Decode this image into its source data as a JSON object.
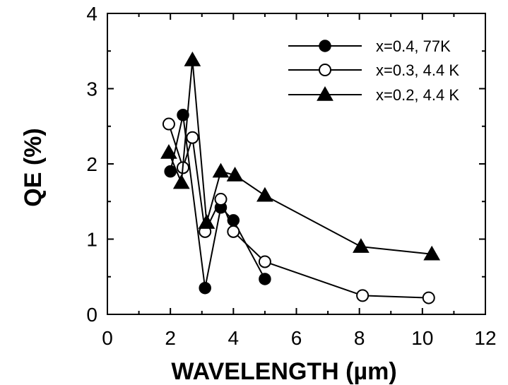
{
  "chart_data": {
    "type": "line",
    "title": "",
    "xlabel": "WAVELENGTH (µm)",
    "ylabel": "QE (%)",
    "xlim": [
      0,
      12
    ],
    "ylim": [
      0,
      4
    ],
    "xticks": [
      0,
      2,
      4,
      6,
      8,
      10,
      12
    ],
    "yticks": [
      0,
      1,
      2,
      3,
      4
    ],
    "xtick_labels": [
      "0",
      "2",
      "4",
      "6",
      "8",
      "10",
      "12"
    ],
    "ytick_labels": [
      "0",
      "1",
      "2",
      "3",
      "4"
    ],
    "grid": false,
    "legend_position": "top-right",
    "series": [
      {
        "name": "x=0.4, 77K",
        "marker": "filled-circle",
        "color": "#000000",
        "x": [
          2.0,
          2.4,
          3.1,
          3.6,
          4.0,
          5.0
        ],
        "y": [
          1.9,
          2.65,
          0.35,
          1.42,
          1.25,
          0.47
        ]
      },
      {
        "name": "x=0.3, 4.4 K",
        "marker": "open-circle",
        "color": "#000000",
        "x": [
          1.95,
          2.4,
          2.7,
          3.1,
          3.6,
          4.0,
          5.0,
          8.1,
          10.2
        ],
        "y": [
          2.53,
          1.95,
          2.35,
          1.1,
          1.53,
          1.1,
          0.7,
          0.25,
          0.22
        ]
      },
      {
        "name": "x=0.2, 4.4 K",
        "marker": "filled-triangle",
        "color": "#000000",
        "x": [
          1.95,
          2.35,
          2.7,
          3.15,
          3.6,
          4.05,
          5.0,
          8.05,
          10.3
        ],
        "y": [
          2.15,
          1.75,
          3.38,
          1.22,
          1.9,
          1.85,
          1.58,
          0.9,
          0.8
        ]
      }
    ]
  }
}
